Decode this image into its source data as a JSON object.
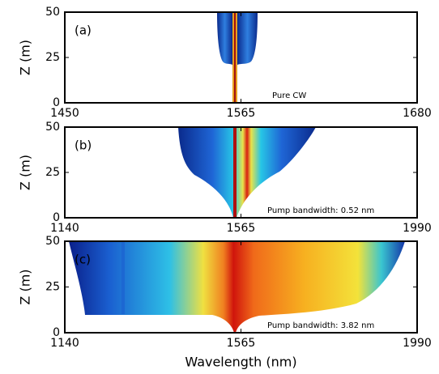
{
  "chart_data": [
    {
      "type": "heatmap",
      "label": "(a)",
      "annotation": "Pure CW",
      "ylabel": "Z (m)",
      "xlim": [
        1450,
        1680
      ],
      "xticks": [
        1450,
        1565,
        1680
      ],
      "ylim": [
        0,
        50
      ],
      "yticks": [
        0,
        25,
        50
      ]
    },
    {
      "type": "heatmap",
      "label": "(b)",
      "annotation": "Pump bandwidth: 0.52 nm",
      "ylabel": "Z (m)",
      "xlim": [
        1140,
        1990
      ],
      "xticks": [
        1140,
        1565,
        1990
      ],
      "ylim": [
        0,
        50
      ],
      "yticks": [
        0,
        25,
        50
      ]
    },
    {
      "type": "heatmap",
      "label": "(c)",
      "annotation": "Pump bandwidth: 3.82 nm",
      "ylabel": "Z (m)",
      "xlabel": "Wavelength (nm)",
      "xlim": [
        1140,
        1990
      ],
      "xticks": [
        1140,
        1565,
        1990
      ],
      "ylim": [
        0,
        50
      ],
      "yticks": [
        0,
        25,
        50
      ]
    }
  ]
}
